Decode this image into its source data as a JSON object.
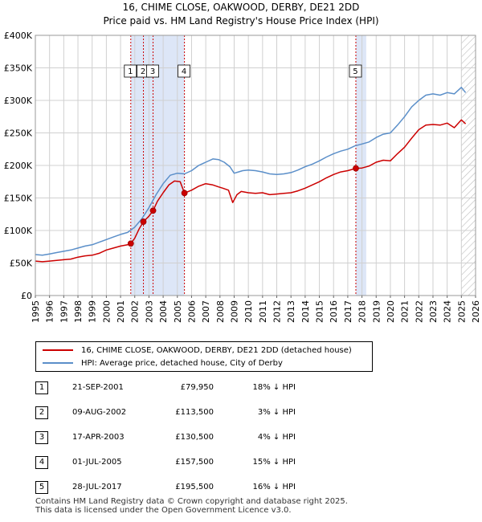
{
  "title_line1": "16, CHIME CLOSE, OAKWOOD, DERBY, DE21 2DD",
  "title_line2": "Price paid vs. HM Land Registry's House Price Index (HPI)",
  "chart_data": {
    "type": "line",
    "xlim": [
      1995,
      2026
    ],
    "ylim": [
      0,
      400000
    ],
    "y_ticks": [
      {
        "value": 0,
        "label": "£0"
      },
      {
        "value": 50000,
        "label": "£50K"
      },
      {
        "value": 100000,
        "label": "£100K"
      },
      {
        "value": 150000,
        "label": "£150K"
      },
      {
        "value": 200000,
        "label": "£200K"
      },
      {
        "value": 250000,
        "label": "£250K"
      },
      {
        "value": 300000,
        "label": "£300K"
      },
      {
        "value": 350000,
        "label": "£350K"
      },
      {
        "value": 400000,
        "label": "£400K"
      }
    ],
    "x_ticks": [
      "1995",
      "1996",
      "1997",
      "1998",
      "1999",
      "2000",
      "2001",
      "2002",
      "2003",
      "2004",
      "2005",
      "2006",
      "2007",
      "2008",
      "2009",
      "2010",
      "2011",
      "2012",
      "2013",
      "2014",
      "2015",
      "2016",
      "2017",
      "2018",
      "2019",
      "2020",
      "2021",
      "2022",
      "2023",
      "2024",
      "2025",
      "2026"
    ],
    "grid": true,
    "colors": {
      "property": "#cc0000",
      "hpi": "#5b8fc9",
      "shade": "#dde6f7",
      "vline": "#cc0000",
      "grid": "#d0d0d0"
    },
    "shaded_ranges": [
      [
        2001.72,
        2005.5
      ],
      [
        2017.57,
        2018.3
      ]
    ],
    "hatched_from": 2025.0,
    "series": [
      {
        "name": "16, CHIME CLOSE, OAKWOOD, DERBY, DE21 2DD (detached house)",
        "key": "property",
        "x": [
          1995.0,
          1995.5,
          1996.0,
          1996.5,
          1997.0,
          1997.5,
          1998.0,
          1998.5,
          1999.0,
          1999.5,
          2000.0,
          2000.5,
          2001.0,
          2001.5,
          2001.72,
          2002.0,
          2002.3,
          2002.61,
          2003.0,
          2003.29,
          2003.6,
          2004.0,
          2004.4,
          2004.8,
          2005.2,
          2005.5,
          2006.0,
          2006.5,
          2007.0,
          2007.5,
          2007.9,
          2008.2,
          2008.6,
          2008.9,
          2009.2,
          2009.5,
          2010.0,
          2010.5,
          2011.0,
          2011.5,
          2012.0,
          2012.5,
          2013.0,
          2013.5,
          2014.0,
          2014.5,
          2015.0,
          2015.5,
          2016.0,
          2016.5,
          2017.0,
          2017.57,
          2018.0,
          2018.5,
          2019.0,
          2019.5,
          2020.0,
          2020.5,
          2021.0,
          2021.5,
          2022.0,
          2022.5,
          2023.0,
          2023.5,
          2024.0,
          2024.5,
          2025.0,
          2025.3
        ],
        "values": [
          53000,
          52000,
          53000,
          54000,
          55000,
          56000,
          59000,
          61000,
          62000,
          65000,
          70000,
          73000,
          76000,
          78000,
          79950,
          88000,
          102000,
          113500,
          122000,
          130500,
          145000,
          158000,
          170000,
          176000,
          175000,
          157500,
          162000,
          168000,
          172000,
          170000,
          167000,
          165000,
          162000,
          143000,
          155000,
          160000,
          158000,
          157000,
          158000,
          155000,
          156000,
          157000,
          158000,
          161000,
          165000,
          170000,
          175000,
          181000,
          186000,
          190000,
          192000,
          195500,
          196000,
          199000,
          205000,
          208000,
          207000,
          218000,
          228000,
          242000,
          255000,
          262000,
          263000,
          262000,
          265000,
          258000,
          270000,
          264000
        ]
      },
      {
        "name": "HPI: Average price, detached house, City of Derby",
        "key": "hpi",
        "x": [
          1995.0,
          1995.5,
          1996.0,
          1996.5,
          1997.0,
          1997.5,
          1998.0,
          1998.5,
          1999.0,
          1999.5,
          2000.0,
          2000.5,
          2001.0,
          2001.5,
          2002.0,
          2002.5,
          2003.0,
          2003.5,
          2004.0,
          2004.5,
          2005.0,
          2005.5,
          2006.0,
          2006.5,
          2007.0,
          2007.5,
          2007.9,
          2008.3,
          2008.7,
          2009.0,
          2009.3,
          2009.6,
          2010.0,
          2010.5,
          2011.0,
          2011.5,
          2012.0,
          2012.5,
          2013.0,
          2013.5,
          2014.0,
          2014.5,
          2015.0,
          2015.5,
          2016.0,
          2016.5,
          2017.0,
          2017.5,
          2018.0,
          2018.5,
          2019.0,
          2019.5,
          2020.0,
          2020.5,
          2021.0,
          2021.5,
          2022.0,
          2022.5,
          2023.0,
          2023.5,
          2024.0,
          2024.5,
          2025.0,
          2025.3
        ],
        "values": [
          63000,
          62000,
          64000,
          66000,
          68000,
          70000,
          73000,
          76000,
          78000,
          82000,
          86000,
          90000,
          94000,
          97000,
          105000,
          118000,
          135000,
          155000,
          172000,
          185000,
          188000,
          187000,
          192000,
          200000,
          205000,
          210000,
          209000,
          205000,
          198000,
          188000,
          190000,
          192000,
          193000,
          192000,
          190000,
          187000,
          186000,
          187000,
          189000,
          193000,
          198000,
          202000,
          207000,
          213000,
          218000,
          222000,
          225000,
          230000,
          233000,
          236000,
          243000,
          248000,
          250000,
          262000,
          275000,
          290000,
          300000,
          308000,
          310000,
          308000,
          312000,
          310000,
          320000,
          312000
        ]
      }
    ],
    "sales": [
      {
        "n": "1",
        "x": 2001.72,
        "y": 79950
      },
      {
        "n": "2",
        "x": 2002.61,
        "y": 113500
      },
      {
        "n": "3",
        "x": 2003.29,
        "y": 130500
      },
      {
        "n": "4",
        "x": 2005.5,
        "y": 157500
      },
      {
        "n": "5",
        "x": 2017.57,
        "y": 195500
      }
    ]
  },
  "legend": {
    "property_label": "16, CHIME CLOSE, OAKWOOD, DERBY, DE21 2DD (detached house)",
    "hpi_label": "HPI: Average price, detached house, City of Derby"
  },
  "transactions": [
    {
      "n": "1",
      "date": "21-SEP-2001",
      "price": "£79,950",
      "hpi": "18% ↓ HPI"
    },
    {
      "n": "2",
      "date": "09-AUG-2002",
      "price": "£113,500",
      "hpi": "3% ↓ HPI"
    },
    {
      "n": "3",
      "date": "17-APR-2003",
      "price": "£130,500",
      "hpi": "4% ↓ HPI"
    },
    {
      "n": "4",
      "date": "01-JUL-2005",
      "price": "£157,500",
      "hpi": "15% ↓ HPI"
    },
    {
      "n": "5",
      "date": "28-JUL-2017",
      "price": "£195,500",
      "hpi": "16% ↓ HPI"
    }
  ],
  "footer_line1": "Contains HM Land Registry data © Crown copyright and database right 2025.",
  "footer_line2": "This data is licensed under the Open Government Licence v3.0."
}
